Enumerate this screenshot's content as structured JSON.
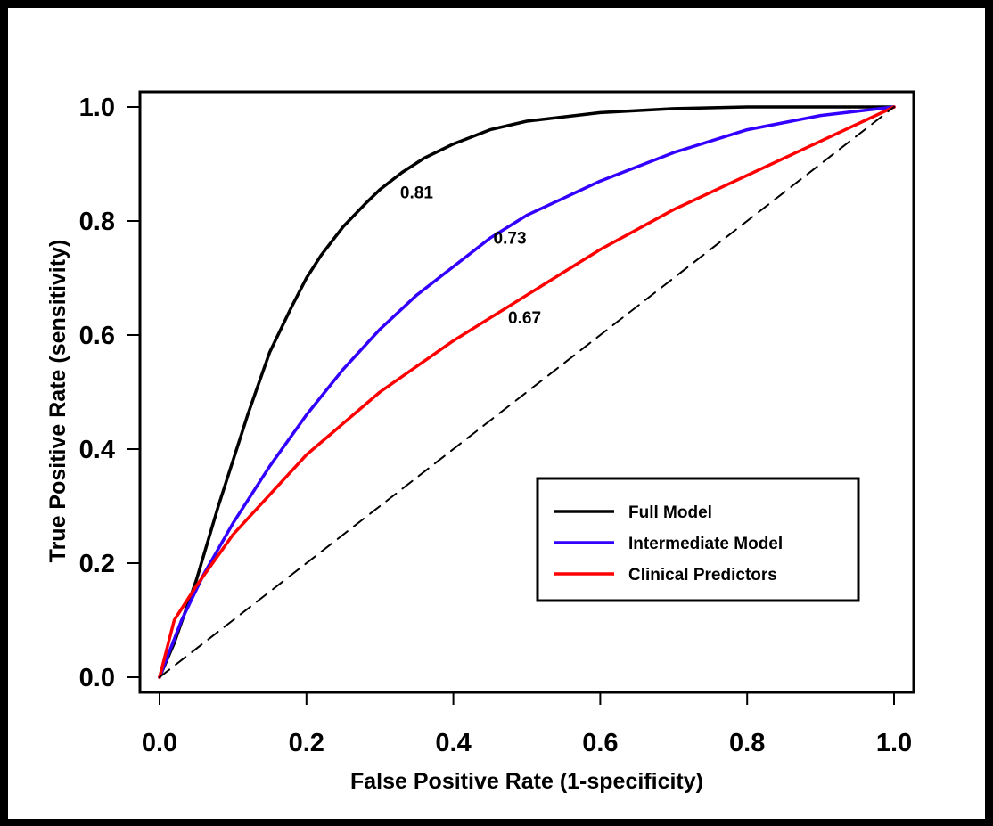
{
  "chart_data": {
    "type": "line",
    "xlabel": "False Positive Rate (1-specificity)",
    "ylabel": "True Positive Rate (sensitivity)",
    "xlim": [
      0,
      1
    ],
    "ylim": [
      0,
      1
    ],
    "x_ticks": [
      "0.0",
      "0.2",
      "0.4",
      "0.6",
      "0.8",
      "1.0"
    ],
    "y_ticks": [
      "0.0",
      "0.2",
      "0.4",
      "0.6",
      "0.8",
      "1.0"
    ],
    "grid": false,
    "legend_position": "bottom-right",
    "series": [
      {
        "name": "Full Model",
        "color": "#000000",
        "x": [
          0,
          0.02,
          0.05,
          0.08,
          0.1,
          0.12,
          0.15,
          0.18,
          0.2,
          0.22,
          0.25,
          0.28,
          0.3,
          0.33,
          0.36,
          0.4,
          0.45,
          0.5,
          0.6,
          0.7,
          0.8,
          0.9,
          1.0
        ],
        "y": [
          0,
          0.06,
          0.17,
          0.3,
          0.38,
          0.46,
          0.57,
          0.65,
          0.7,
          0.74,
          0.79,
          0.83,
          0.855,
          0.885,
          0.91,
          0.935,
          0.96,
          0.975,
          0.99,
          0.997,
          1.0,
          1.0,
          1.0
        ]
      },
      {
        "name": "Intermediate Model",
        "color": "#3300ff",
        "x": [
          0,
          0.03,
          0.06,
          0.1,
          0.15,
          0.2,
          0.25,
          0.3,
          0.35,
          0.4,
          0.45,
          0.5,
          0.6,
          0.7,
          0.8,
          0.9,
          1.0
        ],
        "y": [
          0,
          0.1,
          0.18,
          0.27,
          0.37,
          0.46,
          0.54,
          0.61,
          0.67,
          0.72,
          0.77,
          0.81,
          0.87,
          0.92,
          0.96,
          0.985,
          1.0
        ]
      },
      {
        "name": "Clinical Predictors",
        "color": "#ff0000",
        "x": [
          0,
          0.02,
          0.05,
          0.1,
          0.15,
          0.2,
          0.3,
          0.4,
          0.5,
          0.6,
          0.7,
          0.8,
          0.9,
          1.0
        ],
        "y": [
          0,
          0.1,
          0.16,
          0.25,
          0.32,
          0.39,
          0.5,
          0.59,
          0.67,
          0.75,
          0.82,
          0.88,
          0.94,
          1.0
        ]
      },
      {
        "color": "#000000",
        "style": "dashed",
        "x": [
          0,
          1
        ],
        "y": [
          0,
          1
        ]
      }
    ],
    "annotations": [
      {
        "text": "0.81",
        "x": 0.35,
        "y": 0.84
      },
      {
        "text": "0.73",
        "x": 0.477,
        "y": 0.76
      },
      {
        "text": "0.67",
        "x": 0.497,
        "y": 0.62
      }
    ]
  }
}
